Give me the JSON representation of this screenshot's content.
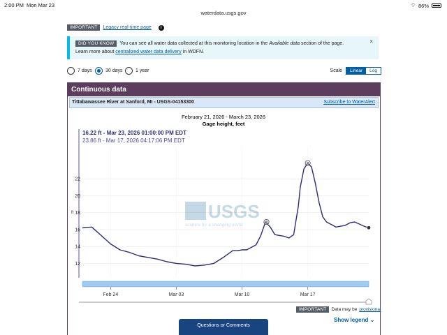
{
  "status_bar": {
    "time": "2:00 PM",
    "date": "Mon Mar 23",
    "battery": "86%"
  },
  "browser": {
    "url": "waterdata.usgs.gov"
  },
  "important_banner": {
    "tag": "IMPORTANT",
    "link_label": "Legacy real-time page"
  },
  "did_you_know": {
    "tag": "DID YOU KNOW",
    "text_before": "You can see all water data collected at this monitoring location in the",
    "italic": "Available data",
    "text_after": "section of the page.",
    "line2_before": "Learn more about",
    "line2_link": "centralized water data delivery",
    "line2_after": "in WDFN.",
    "close": "×"
  },
  "range": {
    "options": [
      "7 days",
      "30 days",
      "1 year"
    ],
    "selected": "30 days",
    "scale_label": "Scale",
    "scale_linear": "Linear",
    "scale_log": "Log"
  },
  "panel": {
    "title": "Continuous data",
    "site_name": "Tittabawassee River at Sanford, MI - USGS-04153300",
    "subscribe": "Subscribe to WaterAlert"
  },
  "chart_data": {
    "type": "line",
    "title": "February 21, 2026 - March 23, 2026",
    "subtitle": "Gage height, feet",
    "tooltip_current": "16.22 ft - Mar 23, 2026 01:00:00 PM EDT",
    "tooltip_other": "23.86 ft - Mar 17, 2026 04:17:06 PM EDT",
    "y_unit_label": "ft",
    "yticks": [
      12,
      14,
      16,
      18,
      20,
      22
    ],
    "ylim": [
      10.3,
      25.4
    ],
    "xticks": [
      "Feb 24",
      "Mar 03",
      "Mar 10",
      "Mar 17"
    ],
    "xtick_days": [
      3,
      10,
      17,
      24
    ],
    "xlim_days": [
      0,
      30.5
    ],
    "watermark": "USGS",
    "watermark_tagline": "science for a changing world",
    "series": [
      {
        "x_days": [
          0,
          1,
          2,
          3,
          4,
          5,
          6,
          7,
          8,
          9,
          10,
          11,
          12,
          13,
          14,
          15,
          16,
          16.5,
          17,
          17.5,
          18,
          18.5,
          19,
          19.5,
          20,
          20.5,
          21,
          21.5,
          22,
          22.5,
          23,
          23.2,
          23.6,
          24,
          24.4,
          24.8,
          25.2,
          25.6,
          26,
          27,
          28,
          28.5,
          29,
          30,
          30.5
        ],
        "values": [
          16.2,
          16.3,
          15.3,
          14.3,
          13.6,
          13.3,
          12.9,
          12.7,
          12.5,
          12.2,
          12.0,
          11.9,
          11.7,
          11.8,
          12.0,
          12.7,
          13.5,
          13.5,
          13.6,
          13.6,
          13.9,
          14.2,
          15.3,
          16.9,
          16.3,
          15.4,
          15.3,
          15.2,
          15.0,
          15.4,
          18.8,
          21.0,
          23.2,
          23.85,
          23.4,
          21.5,
          19.2,
          17.5,
          16.9,
          16.3,
          16.5,
          16.8,
          16.9,
          16.4,
          16.2
        ]
      }
    ],
    "markers": [
      {
        "day": 19.6,
        "value": 16.9
      },
      {
        "day": 24.0,
        "value": 23.86
      },
      {
        "day": 30.5,
        "value": 16.22
      }
    ]
  },
  "footer": {
    "important_tag": "IMPORTANT",
    "provisional_before": "Data may be",
    "provisional_link": "provisional",
    "show_legend": "Show legend",
    "questions": "Questions or Comments"
  },
  "colors": {
    "panel": "#5c3d5e",
    "line": "#2e2b7a",
    "accent": "#005ea2",
    "banner_bg": "#e7f6f8"
  }
}
